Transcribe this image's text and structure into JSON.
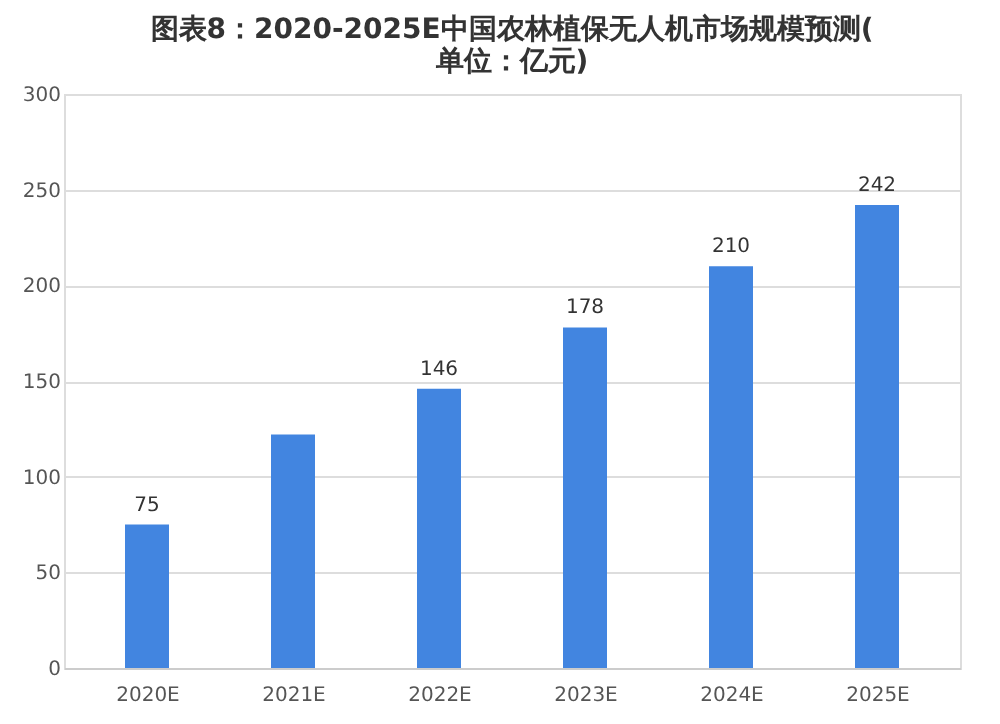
{
  "chart_data": {
    "type": "bar",
    "title": "图表8：2020-2025E中国农林植保无人机市场规模预测(单位：亿元)",
    "categories": [
      "2020E",
      "2021E",
      "2022E",
      "2023E",
      "2024E",
      "2025E"
    ],
    "values": [
      75,
      122,
      146,
      178,
      210,
      242
    ],
    "value_labels": [
      "75",
      null,
      "146",
      "178",
      "210",
      "242"
    ],
    "color": "#4285e0",
    "ylim": [
      0,
      300
    ],
    "yticks": [
      0,
      50,
      100,
      150,
      200,
      250,
      300
    ],
    "grid": "y"
  }
}
